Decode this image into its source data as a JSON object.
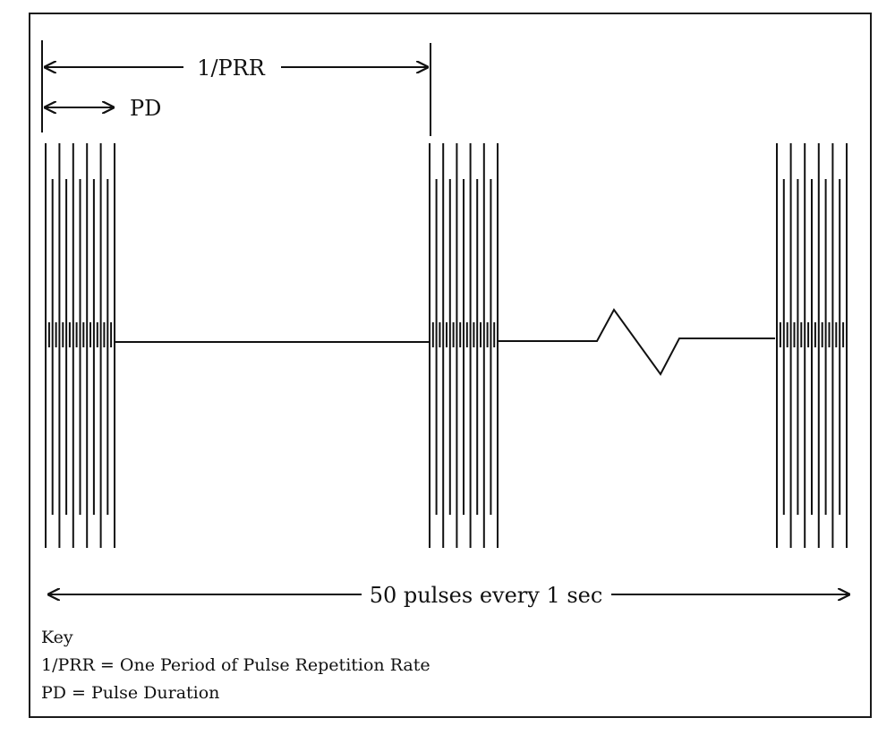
{
  "labels": {
    "period": "1/PRR",
    "pulse_duration": "PD",
    "rate": "50 pulses every 1 sec"
  },
  "key": {
    "title": "Key",
    "line1": "1/PRR = One Period of Pulse Repetition Rate",
    "line2": "PD = Pulse Duration"
  }
}
